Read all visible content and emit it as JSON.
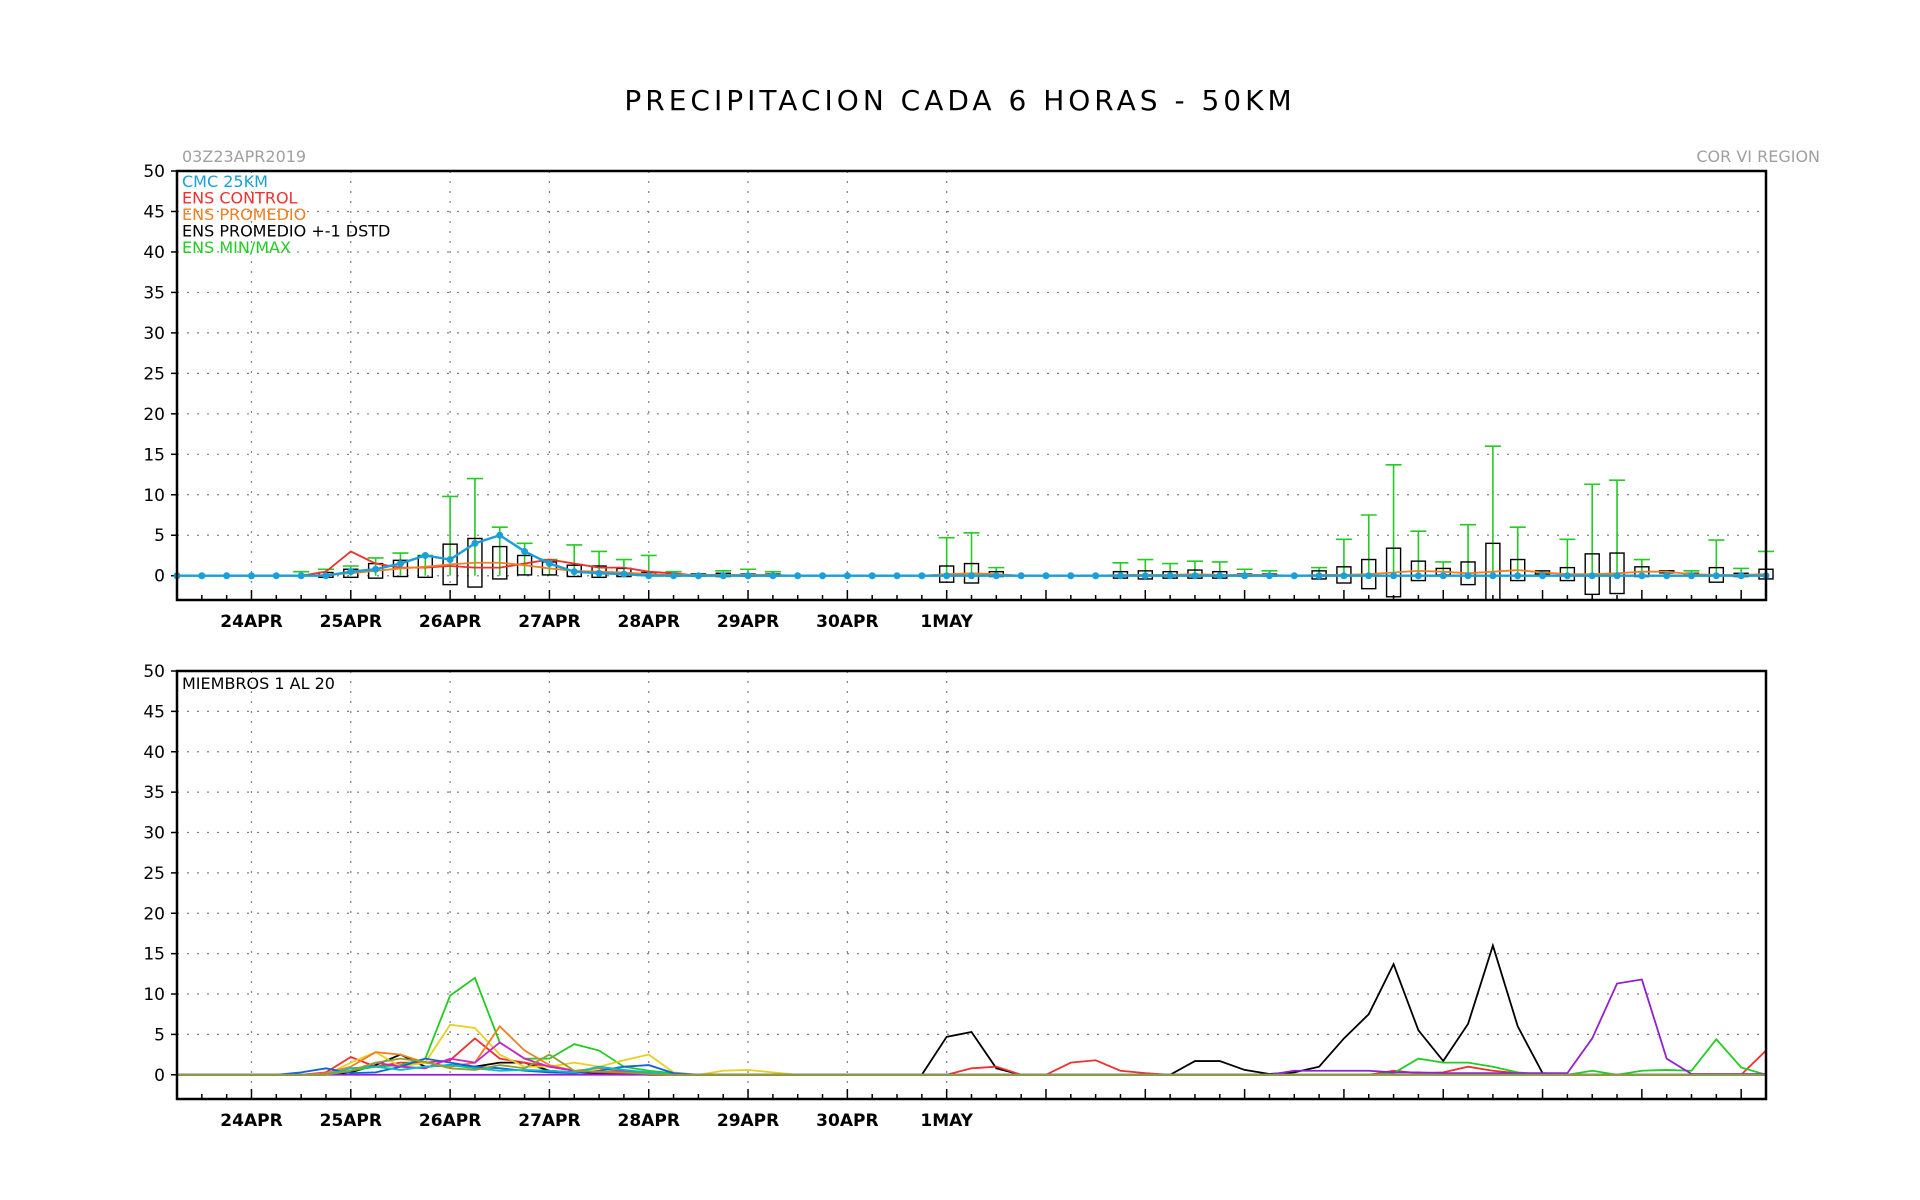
{
  "figure": {
    "title": "PRECIPITACION CADA 6 HORAS - 50KM",
    "init_time": "03Z23APR2019",
    "region": "COR VI REGION"
  },
  "chart_data": [
    {
      "type": "line",
      "panel": "ensemble-summary",
      "x_start": "2019-04-23T03:00Z",
      "x_step_hours": 6,
      "x_ticks": [
        "24APR",
        "25APR",
        "26APR",
        "27APR",
        "28APR",
        "29APR",
        "30APR",
        "1MAY"
      ],
      "ylim": [
        -3,
        50
      ],
      "yticks": [
        0,
        5,
        10,
        15,
        20,
        25,
        30,
        35,
        40,
        45,
        50
      ],
      "grid": true,
      "legend_position": "top-left",
      "legend": [
        {
          "label": "CMC 25KM",
          "color": "#1aa0d8"
        },
        {
          "label": "ENS CONTROL",
          "color": "#f03030"
        },
        {
          "label": "ENS PROMEDIO",
          "color": "#f08020"
        },
        {
          "label": "ENS PROMEDIO +-1 DSTD",
          "color": "#000000"
        },
        {
          "label": "ENS MIN/MAX",
          "color": "#22cc22"
        }
      ],
      "series": [
        {
          "name": "CMC 25KM",
          "color": "#1aa0d8",
          "values": [
            0,
            0,
            0,
            0,
            0,
            0,
            0,
            0.5,
            0.8,
            1.5,
            2.5,
            2,
            4,
            5,
            3,
            1.5,
            0.5,
            0.3,
            0.2,
            0,
            0,
            0,
            0,
            0,
            0,
            0,
            0,
            0,
            0,
            0,
            0,
            0,
            0,
            0,
            0,
            0,
            0,
            0,
            0,
            0,
            0,
            0,
            0,
            0,
            0,
            0,
            0,
            0,
            0,
            0,
            0,
            0,
            0,
            0,
            0,
            0,
            0,
            0,
            0,
            0,
            0,
            0,
            0,
            0,
            0
          ]
        },
        {
          "name": "ENS CONTROL",
          "color": "#f03030",
          "values": [
            0,
            0,
            0,
            0,
            0,
            0,
            0.5,
            3,
            1.5,
            1,
            1,
            1.2,
            1,
            1,
            1.5,
            2,
            1.5,
            1,
            1,
            0.5,
            0.3,
            0,
            0,
            0,
            0,
            0,
            0,
            0,
            0,
            0,
            0,
            0,
            0,
            0,
            0,
            0,
            0,
            0,
            0,
            0,
            0,
            0,
            0,
            0,
            0,
            0,
            0,
            0,
            0,
            0,
            0,
            0,
            0,
            0,
            0,
            0,
            0,
            0,
            0,
            0,
            0,
            0,
            0,
            0,
            0
          ]
        },
        {
          "name": "ENS PROMEDIO",
          "color": "#f08020",
          "values": [
            0,
            0,
            0,
            0,
            0,
            0,
            0.1,
            0.3,
            0.6,
            0.9,
            1.1,
            1.4,
            1.6,
            1.6,
            1.3,
            0.9,
            0.6,
            0.5,
            0.4,
            0.2,
            0.1,
            0.1,
            0.1,
            0.1,
            0.1,
            0,
            0,
            0,
            0,
            0,
            0,
            0.2,
            0.3,
            0.2,
            0,
            0,
            0,
            0,
            0.1,
            0.1,
            0.1,
            0.2,
            0.1,
            0.1,
            0.1,
            0,
            0.1,
            0.1,
            0.2,
            0.4,
            0.6,
            0.5,
            0.3,
            0.5,
            0.7,
            0.4,
            0.2,
            0.2,
            0.3,
            0.5,
            0.5,
            0.2,
            0.1,
            0.1,
            0.2
          ]
        }
      ],
      "box_series": {
        "mean": [
          0,
          0,
          0,
          0,
          0,
          0,
          0.1,
          0.3,
          0.6,
          0.9,
          1.1,
          1.4,
          1.6,
          1.6,
          1.3,
          0.9,
          0.6,
          0.5,
          0.4,
          0.2,
          0.1,
          0.1,
          0.1,
          0.1,
          0.1,
          0,
          0,
          0,
          0,
          0,
          0,
          0.2,
          0.3,
          0.2,
          0,
          0,
          0,
          0,
          0.1,
          0.1,
          0.1,
          0.2,
          0.1,
          0.1,
          0.1,
          0,
          0.1,
          0.1,
          0.2,
          0.4,
          0.6,
          0.5,
          0.3,
          0.5,
          0.7,
          0.4,
          0.2,
          0.2,
          0.3,
          0.5,
          0.5,
          0.2,
          0.1,
          0.1,
          0.2
        ],
        "std": [
          0,
          0,
          0,
          0,
          0,
          0,
          0.3,
          0.5,
          0.9,
          1.0,
          1.3,
          2.5,
          3.0,
          2.0,
          1.2,
          0.8,
          0.7,
          0.7,
          0.5,
          0.2,
          0.1,
          0.1,
          0.2,
          0.1,
          0.1,
          0,
          0,
          0,
          0,
          0,
          0,
          1.0,
          1.2,
          0.3,
          0,
          0,
          0,
          0,
          0.4,
          0.5,
          0.4,
          0.5,
          0.4,
          0.1,
          0.1,
          0,
          0.5,
          1.0,
          1.8,
          3.0,
          1.2,
          0.4,
          1.4,
          3.5,
          1.3,
          0.2,
          0.8,
          2.5,
          2.5,
          0.6,
          0.1,
          0.1,
          0.9,
          0.2,
          0.6
        ],
        "min": [
          0,
          0,
          0,
          0,
          0,
          0,
          0,
          0,
          0,
          0,
          0,
          0,
          0,
          0,
          0,
          0,
          0,
          0,
          0,
          0,
          0,
          0,
          0,
          0,
          0,
          0,
          0,
          0,
          0,
          0,
          0,
          0,
          0,
          0,
          0,
          0,
          0,
          0,
          0,
          0,
          0,
          0,
          0,
          0,
          0,
          0,
          0,
          0,
          0,
          0,
          0,
          0,
          0,
          0,
          0,
          0,
          0,
          0,
          0,
          0,
          0,
          0,
          0,
          0,
          0
        ],
        "max": [
          0,
          0,
          0,
          0,
          0,
          0.5,
          0.8,
          1.2,
          2.2,
          2.8,
          2.5,
          9.8,
          12,
          6,
          4,
          2,
          3.8,
          3,
          2,
          2.5,
          0.5,
          0.2,
          0.6,
          0.8,
          0.5,
          0,
          0,
          0,
          0,
          0,
          0,
          4.7,
          5.3,
          1,
          0,
          0,
          0,
          0,
          1.6,
          2,
          1.5,
          1.8,
          1.7,
          0.8,
          0.6,
          0,
          1,
          4.5,
          7.5,
          13.7,
          5.5,
          1.7,
          6.3,
          16,
          6,
          0.2,
          4.5,
          11.3,
          11.8,
          2,
          0.6,
          0.6,
          4.4,
          0.9,
          3
        ]
      },
      "cmc_markers_every_n": 1
    },
    {
      "type": "line",
      "panel": "members",
      "annotation": "MIEMBROS 1 AL 20",
      "x_start": "2019-04-23T03:00Z",
      "x_step_hours": 6,
      "x_ticks": [
        "24APR",
        "25APR",
        "26APR",
        "27APR",
        "28APR",
        "29APR",
        "30APR",
        "1MAY"
      ],
      "ylim": [
        -3,
        50
      ],
      "yticks": [
        0,
        5,
        10,
        15,
        20,
        25,
        30,
        35,
        40,
        45,
        50
      ],
      "grid": true,
      "series": [
        {
          "color": "#000000",
          "values": [
            0,
            0,
            0,
            0,
            0,
            0,
            0,
            0.3,
            1.2,
            2.5,
            1,
            1.2,
            1,
            1.5,
            1.5,
            0.5,
            0.3,
            0.2,
            0.1,
            0,
            0,
            0,
            0,
            0,
            0,
            0,
            0,
            0,
            0,
            0,
            0,
            4.7,
            5.3,
            0.8,
            0,
            0,
            0,
            0,
            0,
            0,
            0,
            1.7,
            1.7,
            0.6,
            0.1,
            0.3,
            1,
            4.5,
            7.5,
            13.7,
            5.5,
            1.7,
            6.3,
            16,
            6,
            0.2,
            0,
            0,
            0,
            0,
            0,
            0,
            0,
            0,
            0
          ]
        },
        {
          "color": "#f03030",
          "values": [
            0,
            0,
            0,
            0,
            0,
            0,
            0.3,
            2.2,
            1,
            1.5,
            1.5,
            1.8,
            4.5,
            2,
            1.5,
            1,
            0.5,
            0.3,
            0.2,
            0,
            0,
            0,
            0,
            0,
            0,
            0,
            0,
            0,
            0,
            0,
            0,
            0,
            0.8,
            1,
            0,
            0,
            1.5,
            1.8,
            0.5,
            0.2,
            0,
            0,
            0,
            0,
            0,
            0,
            0,
            0,
            0,
            0.5,
            0.2,
            0.3,
            1,
            0.5,
            0.2,
            0,
            0,
            0,
            0,
            0,
            0,
            0,
            0,
            0,
            3
          ]
        },
        {
          "color": "#22cc22",
          "values": [
            0,
            0,
            0,
            0,
            0,
            0,
            0,
            0.5,
            1,
            1.2,
            2,
            9.8,
            12,
            4,
            2,
            2,
            3.8,
            3,
            1,
            0.5,
            0.2,
            0,
            0,
            0,
            0,
            0,
            0,
            0,
            0,
            0,
            0,
            0,
            0,
            0,
            0,
            0,
            0,
            0,
            0,
            0,
            0,
            0,
            0,
            0,
            0,
            0,
            0,
            0,
            0,
            0.2,
            2,
            1.5,
            1.5,
            1,
            0.3,
            0,
            0,
            0.5,
            0,
            0.5,
            0.6,
            0.5,
            4.4,
            0.9,
            0
          ]
        },
        {
          "color": "#e8d020",
          "values": [
            0,
            0,
            0,
            0,
            0,
            0,
            0,
            1.5,
            2.8,
            1,
            1.5,
            6.2,
            5.8,
            2.5,
            1,
            1,
            1.5,
            1,
            1.8,
            2.5,
            0.3,
            0,
            0.5,
            0.6,
            0.3,
            0,
            0,
            0,
            0,
            0,
            0,
            0,
            0,
            0,
            0,
            0,
            0,
            0,
            0,
            0,
            0,
            0,
            0,
            0,
            0,
            0,
            0,
            0,
            0,
            0,
            0,
            0,
            0,
            0,
            0,
            0,
            0,
            0,
            0,
            0,
            0,
            0,
            0,
            0,
            0
          ]
        },
        {
          "color": "#f08020",
          "values": [
            0,
            0,
            0,
            0,
            0,
            0,
            0.2,
            1,
            2.8,
            2.5,
            1.5,
            1,
            1.5,
            6,
            3,
            1.2,
            0.5,
            0.8,
            0.4,
            0,
            0,
            0,
            0,
            0,
            0,
            0,
            0,
            0,
            0,
            0,
            0,
            0,
            0,
            0,
            0,
            0,
            0,
            0,
            0,
            0,
            0,
            0,
            0,
            0,
            0,
            0,
            0,
            0,
            0,
            0,
            0,
            0,
            0,
            0,
            0,
            0,
            0,
            0,
            0,
            0,
            0,
            0,
            0,
            0,
            0
          ]
        },
        {
          "color": "#1060e0",
          "values": [
            0,
            0,
            0,
            0,
            0,
            0.3,
            0.8,
            0.2,
            0.3,
            1,
            2,
            1.5,
            1,
            0.8,
            0.5,
            0.3,
            0.2,
            0.5,
            1,
            1.2,
            0.2,
            0,
            0,
            0,
            0,
            0,
            0,
            0,
            0,
            0,
            0,
            0,
            0,
            0,
            0,
            0,
            0,
            0,
            0,
            0,
            0,
            0,
            0,
            0,
            0,
            0,
            0,
            0,
            0,
            0,
            0,
            0,
            0,
            0,
            0,
            0,
            0,
            0,
            0,
            0,
            0,
            0,
            0,
            0,
            0
          ]
        },
        {
          "color": "#d020d0",
          "values": [
            0,
            0,
            0,
            0,
            0,
            0,
            0,
            0.5,
            1.5,
            1,
            0.8,
            2,
            1.5,
            4,
            2,
            1,
            0.5,
            0.3,
            0.5,
            0.2,
            0,
            0,
            0,
            0,
            0,
            0,
            0,
            0,
            0,
            0,
            0,
            0,
            0,
            0,
            0,
            0,
            0,
            0,
            0,
            0,
            0,
            0,
            0,
            0,
            0,
            0,
            0,
            0,
            0,
            0,
            0,
            0,
            0,
            0,
            0,
            0,
            0,
            0,
            0,
            0,
            0,
            0,
            0,
            0,
            0
          ]
        },
        {
          "color": "#9020d0",
          "values": [
            0,
            0,
            0,
            0,
            0,
            0,
            0,
            0,
            0,
            0,
            0,
            0,
            0,
            0,
            0,
            0,
            0,
            0,
            0,
            0,
            0,
            0,
            0,
            0,
            0,
            0,
            0,
            0,
            0,
            0,
            0,
            0,
            0,
            0,
            0,
            0,
            0,
            0,
            0,
            0,
            0,
            0,
            0,
            0,
            0,
            0.5,
            0.5,
            0.5,
            0.5,
            0.3,
            0.3,
            0.2,
            0.2,
            0.2,
            0.2,
            0.2,
            0.2,
            4.5,
            11.3,
            11.8,
            2,
            0.1,
            0.1,
            0.1,
            0.1
          ]
        },
        {
          "color": "#00c0c0",
          "values": [
            0,
            0,
            0,
            0,
            0,
            0,
            0,
            0.8,
            1,
            0.6,
            1,
            1.2,
            0.8,
            0.5,
            0.6,
            0.5,
            0.3,
            1,
            0.6,
            0.3,
            0,
            0,
            0,
            0,
            0,
            0,
            0,
            0,
            0,
            0,
            0,
            0,
            0,
            0,
            0,
            0,
            0,
            0,
            0,
            0,
            0,
            0,
            0,
            0,
            0,
            0,
            0,
            0,
            0,
            0,
            0,
            0,
            0,
            0,
            0,
            0,
            0,
            0,
            0,
            0,
            0,
            0,
            0,
            0,
            0
          ]
        },
        {
          "color": "#90a030",
          "values": [
            0,
            0,
            0,
            0,
            0,
            0,
            0,
            0.5,
            1.5,
            2,
            1.6,
            0.8,
            0.6,
            1.2,
            0.8,
            2.5,
            0.5,
            0.4,
            0.3,
            0.1,
            0,
            0,
            0,
            0,
            0,
            0,
            0,
            0,
            0,
            0,
            0,
            0,
            0,
            0,
            0,
            0,
            0,
            0,
            0,
            0,
            0,
            0,
            0,
            0,
            0,
            0,
            0,
            0,
            0,
            0,
            0,
            0,
            0,
            0,
            0,
            0,
            0,
            0,
            0,
            0,
            0,
            0,
            0,
            0,
            0
          ]
        }
      ]
    }
  ]
}
